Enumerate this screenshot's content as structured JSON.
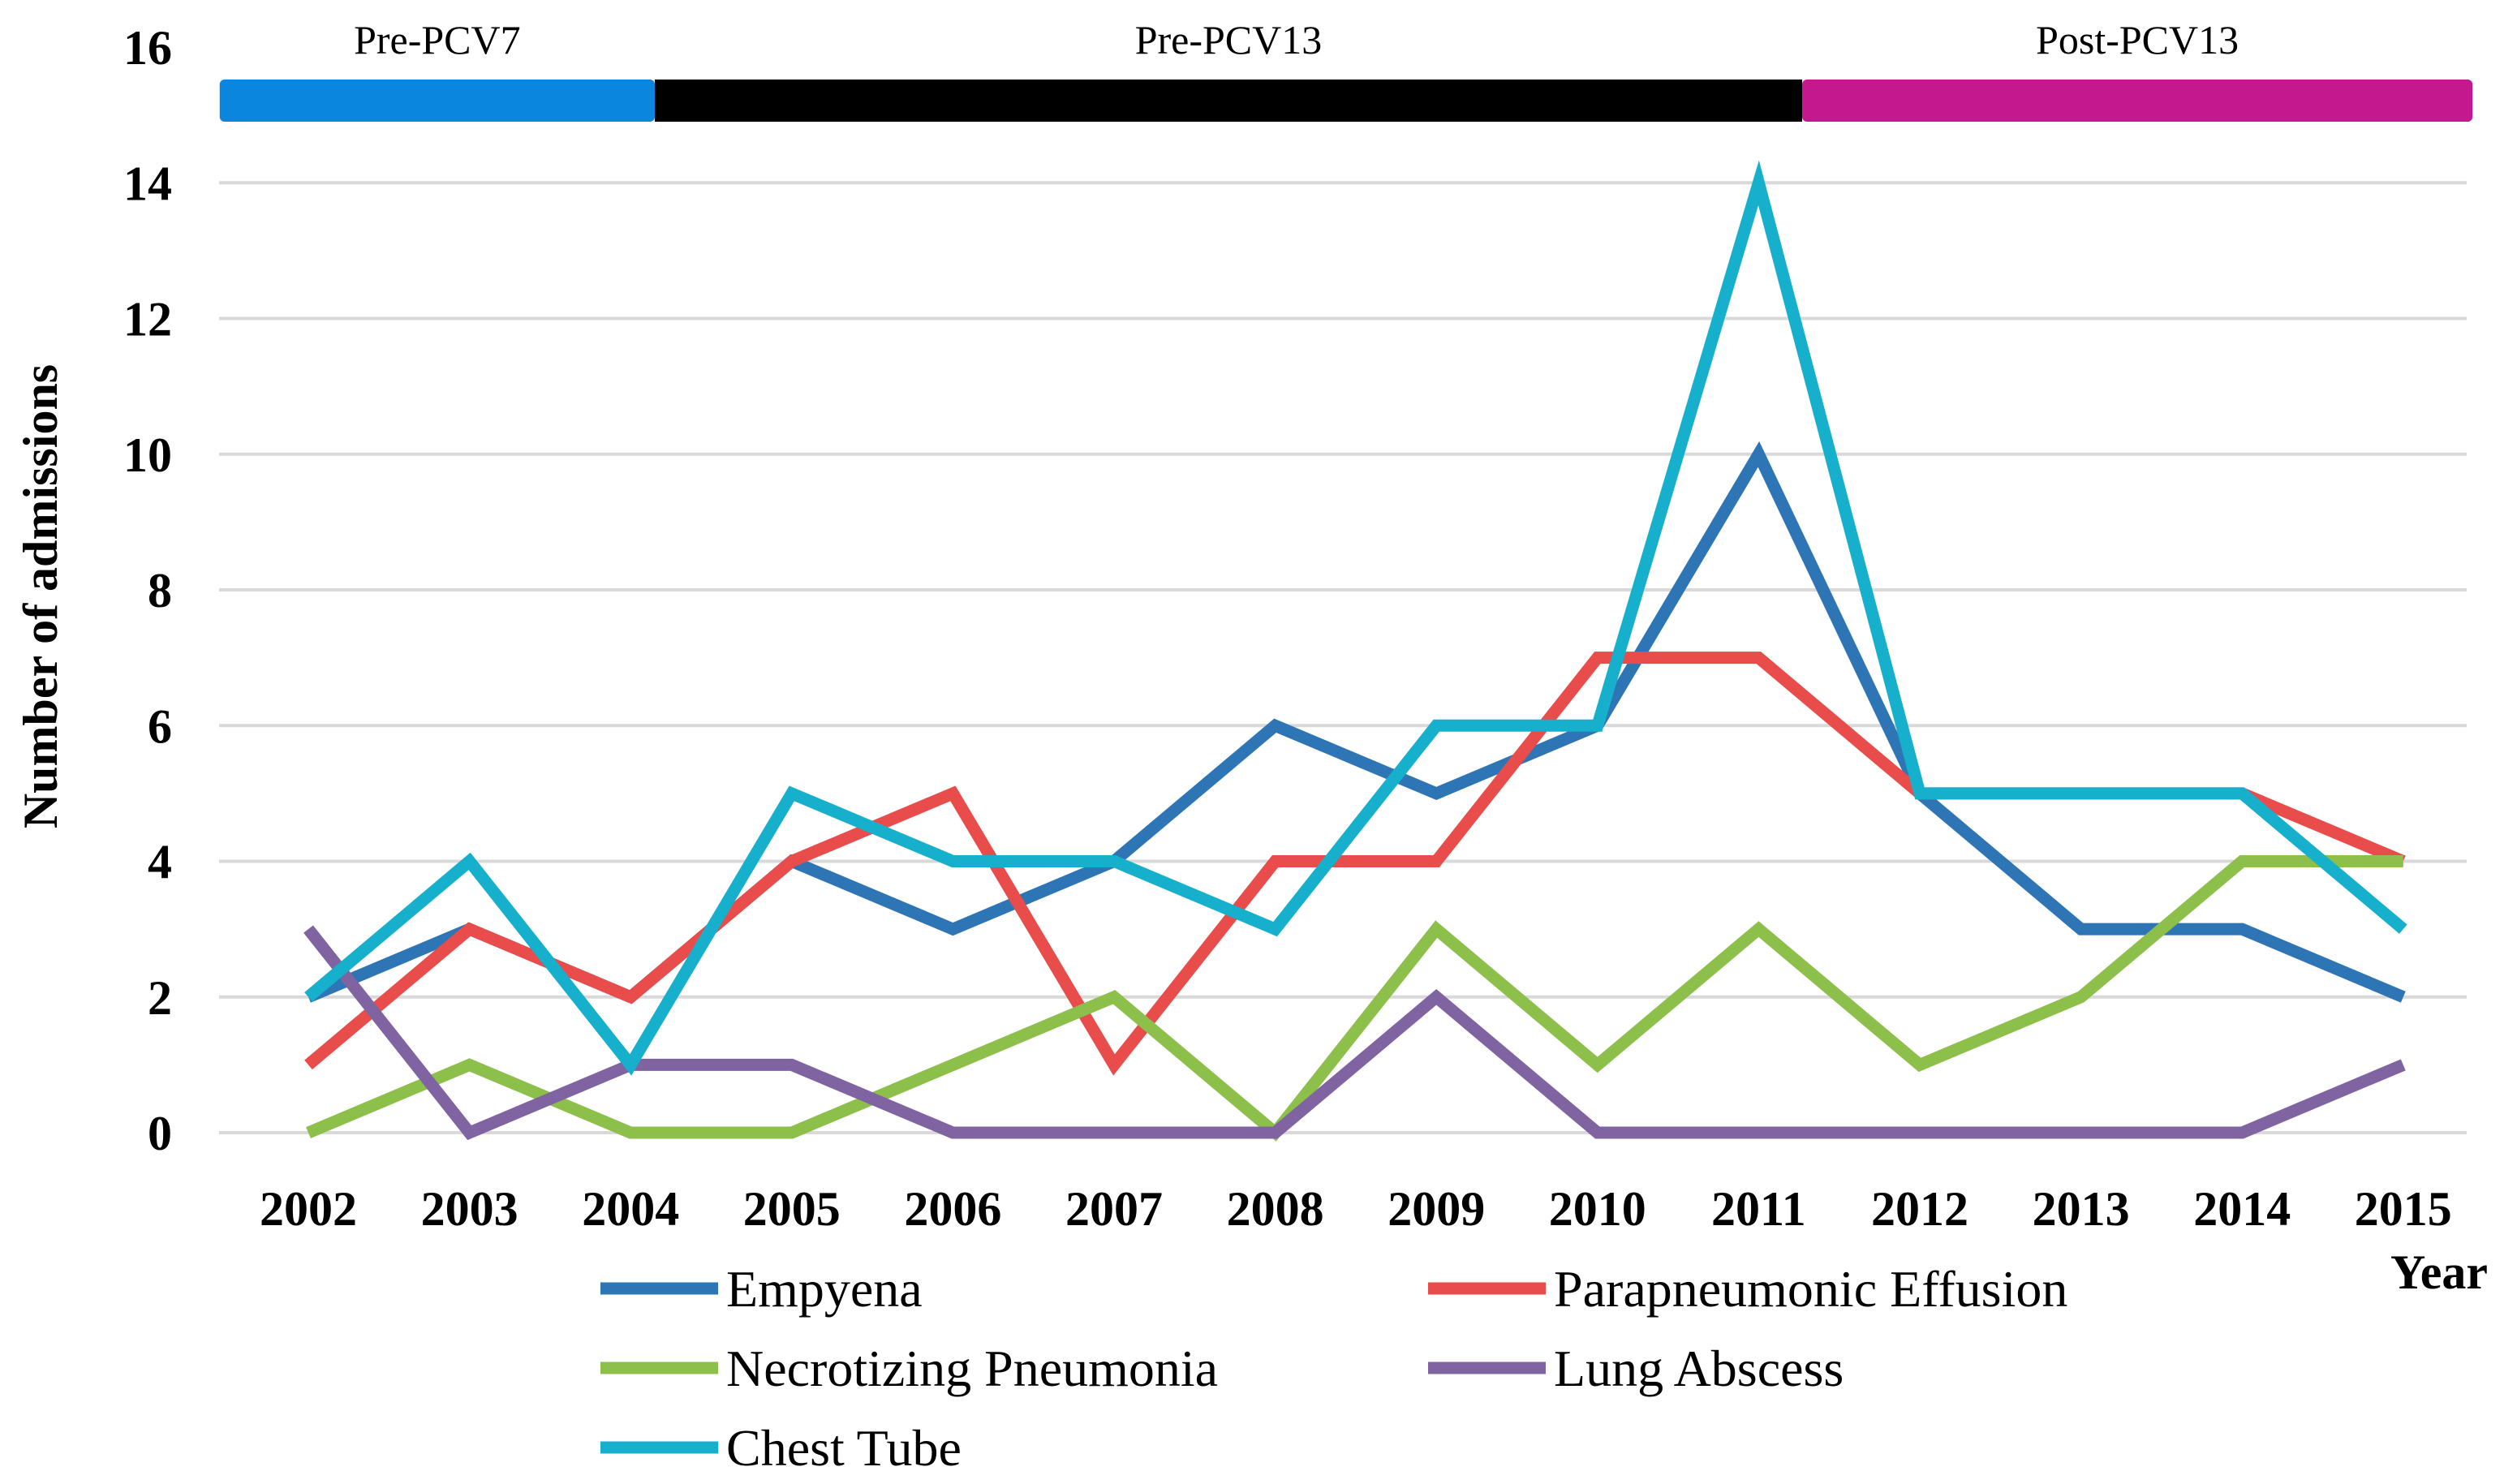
{
  "chart_data": {
    "type": "line",
    "title": "",
    "xlabel": "Year",
    "ylabel": "Number of admissions",
    "ylim": [
      0,
      16
    ],
    "yticks": [
      0,
      2,
      4,
      6,
      8,
      10,
      12,
      14,
      16
    ],
    "grid": true,
    "legend_position": "bottom",
    "categories": [
      "2002",
      "2003",
      "2004",
      "2005",
      "2006",
      "2007",
      "2008",
      "2009",
      "2010",
      "2011",
      "2012",
      "2013",
      "2014",
      "2015"
    ],
    "series": [
      {
        "name": "Empyena",
        "color": "#2e75b6",
        "values": [
          2,
          3,
          2,
          4,
          3,
          4,
          6,
          5,
          6,
          10,
          5,
          3,
          3,
          2
        ]
      },
      {
        "name": "Parapneumonic Effusion",
        "color": "#e84c4b",
        "values": [
          1,
          3,
          2,
          4,
          5,
          1,
          4,
          4,
          7,
          7,
          5,
          5,
          5,
          4
        ]
      },
      {
        "name": "Necrotizing Pneumonia",
        "color": "#8dbf4b",
        "values": [
          0,
          1,
          0,
          0,
          1,
          2,
          0,
          3,
          1,
          3,
          1,
          2,
          4,
          4
        ]
      },
      {
        "name": "Lung Abscess",
        "color": "#8064a2",
        "values": [
          3,
          0,
          1,
          1,
          0,
          0,
          0,
          2,
          0,
          0,
          0,
          0,
          0,
          1
        ]
      },
      {
        "name": "Chest Tube",
        "color": "#17b0cc",
        "values": [
          2,
          4,
          1,
          5,
          4,
          4,
          3,
          6,
          6,
          14,
          5,
          5,
          5,
          3
        ]
      }
    ],
    "periods": [
      {
        "label": "Pre-PCV7",
        "from": 2001.45,
        "to": 2004.15,
        "color": "#0a86df"
      },
      {
        "label": "Pre-PCV13",
        "from": 2004.15,
        "to": 2011.27,
        "color": "#000000"
      },
      {
        "label": "Post-PCV13",
        "from": 2011.27,
        "to": 2015.43,
        "color": "#c4188e"
      }
    ]
  }
}
